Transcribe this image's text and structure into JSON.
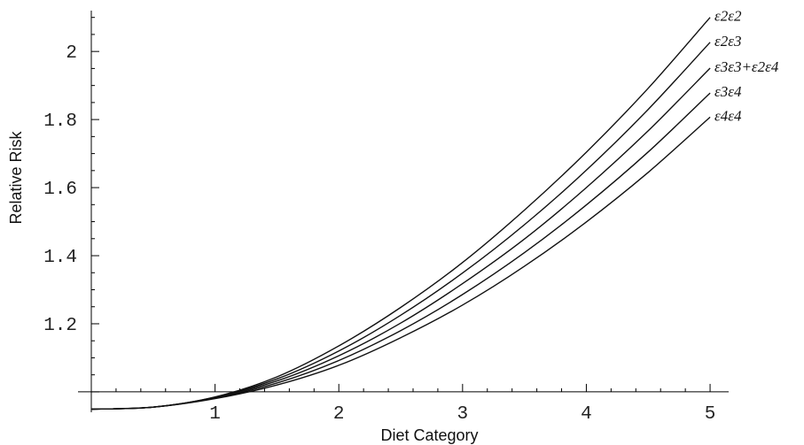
{
  "chart_data": {
    "type": "line",
    "title": "",
    "xlabel": "Diet Category",
    "ylabel": "Relative Risk",
    "xlim": [
      0,
      5.15
    ],
    "ylim": [
      0.94,
      2.12
    ],
    "x_axis_crosses_y_at": 1.0,
    "x_ticks": [
      1,
      2,
      3,
      4,
      5
    ],
    "x_tick_labels": [
      "1",
      "2",
      "3",
      "4",
      "5"
    ],
    "y_ticks": [
      1.2,
      1.4,
      1.6,
      1.8,
      2
    ],
    "y_tick_labels": [
      "1.2",
      "1.4",
      "1.6",
      "1.8",
      "2"
    ],
    "grid": false,
    "legend": "labels at line ends (right)",
    "line_color": "#111111",
    "x": [
      0,
      0.5,
      1,
      1.5,
      2,
      2.5,
      3,
      3.5,
      4,
      4.5,
      5
    ],
    "series": [
      {
        "name": "ε2ε2",
        "values": [
          0.949,
          0.955,
          0.985,
          1.044,
          1.135,
          1.248,
          1.38,
          1.534,
          1.704,
          1.892,
          2.1
        ]
      },
      {
        "name": "ε2ε3",
        "values": [
          0.949,
          0.955,
          0.984,
          1.038,
          1.12,
          1.225,
          1.349,
          1.491,
          1.651,
          1.83,
          2.027
        ]
      },
      {
        "name": "ε3ε3+ε2ε4",
        "values": [
          0.949,
          0.955,
          0.983,
          1.032,
          1.106,
          1.202,
          1.318,
          1.449,
          1.6,
          1.767,
          1.951
        ]
      },
      {
        "name": "ε3ε4",
        "values": [
          0.949,
          0.955,
          0.982,
          1.026,
          1.092,
          1.18,
          1.286,
          1.409,
          1.549,
          1.705,
          1.878
        ]
      },
      {
        "name": "ε4ε4",
        "values": [
          0.949,
          0.955,
          0.98,
          1.02,
          1.078,
          1.159,
          1.255,
          1.369,
          1.499,
          1.645,
          1.807
        ]
      }
    ]
  }
}
